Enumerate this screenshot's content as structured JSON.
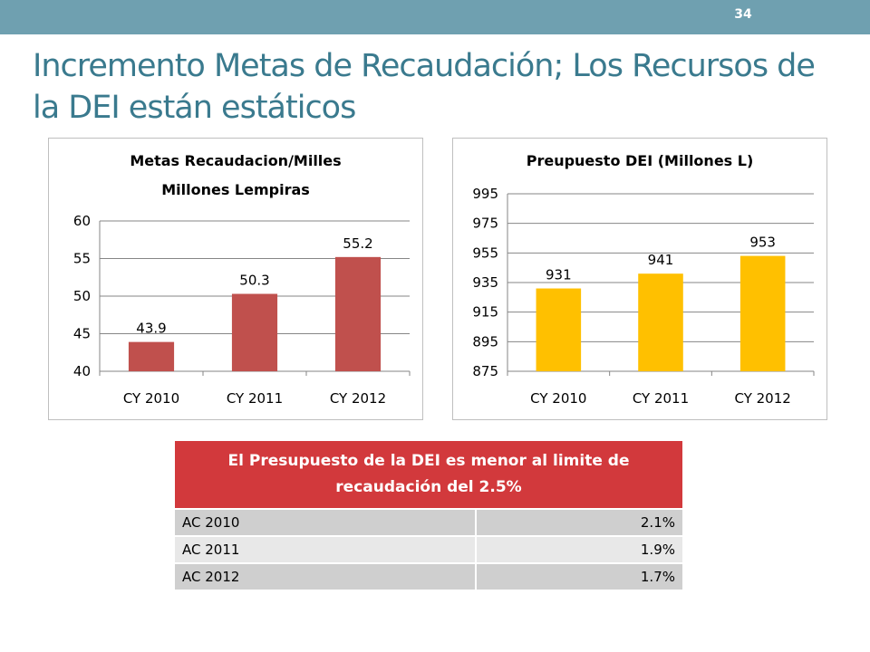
{
  "slide": {
    "page_number": "34",
    "title": "Incremento Metas de Recaudación; Los Recursos de la DEI están estáticos"
  },
  "colors": {
    "topbar": "#6fa0b0",
    "title": "#3a7a8e",
    "metas_bars": "#c0504d",
    "presupuesto_bars": "#ffc000",
    "table_header": "#d2393c"
  },
  "chart_data": [
    {
      "type": "bar",
      "title_lines": [
        "Metas Recaudacion/Milles",
        "Millones Lempiras"
      ],
      "categories": [
        "CY 2010",
        "CY 2011",
        "CY 2012"
      ],
      "values": [
        43.9,
        50.3,
        55.2
      ],
      "ylim": [
        40,
        60
      ],
      "yticks": [
        40,
        45,
        50,
        55,
        60
      ],
      "grid": true,
      "legend": "none",
      "color": "#c0504d"
    },
    {
      "type": "bar",
      "title_lines": [
        "Preupuesto DEI (Millones L)"
      ],
      "categories": [
        "CY 2010",
        "CY 2011",
        "CY 2012"
      ],
      "values": [
        931,
        941,
        953
      ],
      "ylim": [
        875,
        995
      ],
      "yticks": [
        875,
        895,
        915,
        935,
        955,
        975,
        995
      ],
      "grid": true,
      "legend": "none",
      "color": "#ffc000"
    }
  ],
  "table": {
    "header_line1": "El Presupuesto de la DEI es menor al limite de",
    "header_line2": "recaudación del 2.5%",
    "rows": [
      {
        "label": "AC 2010",
        "value": "2.1%"
      },
      {
        "label": "AC 2011",
        "value": "1.9%"
      },
      {
        "label": "AC 2012",
        "value": "1.7%"
      }
    ]
  }
}
